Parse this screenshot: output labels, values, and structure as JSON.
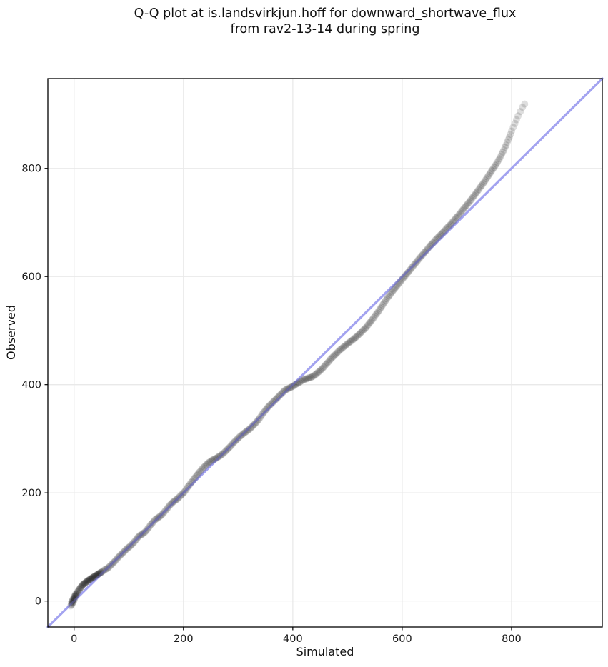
{
  "title": {
    "line1": "Q-Q plot at is.landsvirkjun.hoff for downward_shortwave_flux",
    "line2": "from rav2-13-14 during spring"
  },
  "chart_data": {
    "type": "scatter",
    "title": "Q-Q plot at is.landsvirkjun.hoff for downward_shortwave_flux from rav2-13-14 during spring",
    "xlabel": "Simulated",
    "ylabel": "Observed",
    "xlim": [
      -48,
      966
    ],
    "ylim": [
      -48,
      966
    ],
    "xticks": [
      0,
      200,
      400,
      600,
      800
    ],
    "yticks": [
      0,
      200,
      400,
      600,
      800
    ],
    "grid": true,
    "grid_color": "#e9e9e9",
    "spine_color": "#000000",
    "tick_label_color": "#1a1a1a",
    "reference_line": {
      "kind": "y=x",
      "x0": -48,
      "x1": 966,
      "color": "#a3a3f0",
      "width": 3.2,
      "overlay_opacity": 0.35
    },
    "point_style": {
      "color": "#000000",
      "opacity": 0.13,
      "radius": 5
    },
    "points": [
      [
        -6,
        -9
      ],
      [
        -5,
        -7
      ],
      [
        -5,
        -3
      ],
      [
        -4,
        -6
      ],
      [
        -4,
        -1
      ],
      [
        -3,
        -4
      ],
      [
        -3,
        1
      ],
      [
        -2,
        -2
      ],
      [
        -2,
        3
      ],
      [
        -1,
        0
      ],
      [
        -1,
        5
      ],
      [
        0,
        2
      ],
      [
        0,
        7
      ],
      [
        1,
        5
      ],
      [
        1,
        9
      ],
      [
        2,
        8
      ],
      [
        2,
        11
      ],
      [
        3,
        10
      ],
      [
        3,
        13
      ],
      [
        4,
        12
      ],
      [
        5,
        14
      ],
      [
        6,
        16
      ],
      [
        7,
        18
      ],
      [
        8,
        19
      ],
      [
        9,
        21
      ],
      [
        10,
        22
      ],
      [
        11,
        24
      ],
      [
        12,
        25
      ],
      [
        13,
        26
      ],
      [
        14,
        28
      ],
      [
        15,
        29
      ],
      [
        16,
        30
      ],
      [
        17,
        31
      ],
      [
        18,
        32
      ],
      [
        19,
        33
      ],
      [
        20,
        33
      ],
      [
        21,
        34
      ],
      [
        22,
        35
      ],
      [
        23,
        36
      ],
      [
        24,
        37
      ],
      [
        25,
        37
      ],
      [
        26,
        38
      ],
      [
        27,
        39
      ],
      [
        28,
        39
      ],
      [
        29,
        40
      ],
      [
        30,
        41
      ],
      [
        31,
        41
      ],
      [
        32,
        42
      ],
      [
        33,
        43
      ],
      [
        34,
        43
      ],
      [
        35,
        44
      ],
      [
        36,
        45
      ],
      [
        37,
        45
      ],
      [
        38,
        46
      ],
      [
        39,
        46
      ],
      [
        40,
        47
      ],
      [
        41,
        48
      ],
      [
        42,
        48
      ],
      [
        43,
        49
      ],
      [
        44,
        50
      ],
      [
        45,
        50
      ],
      [
        46,
        51
      ],
      [
        47,
        52
      ],
      [
        48,
        52
      ],
      [
        49,
        53
      ],
      [
        50,
        53
      ],
      [
        52,
        55
      ],
      [
        54,
        56
      ],
      [
        56,
        58
      ],
      [
        58,
        59
      ],
      [
        60,
        60
      ],
      [
        62,
        61
      ],
      [
        64,
        63
      ],
      [
        66,
        65
      ],
      [
        68,
        67
      ],
      [
        70,
        69
      ],
      [
        72,
        71
      ],
      [
        74,
        73
      ],
      [
        76,
        75
      ],
      [
        78,
        78
      ],
      [
        80,
        80
      ],
      [
        82,
        82
      ],
      [
        84,
        84
      ],
      [
        86,
        86
      ],
      [
        88,
        88
      ],
      [
        90,
        90
      ],
      [
        92,
        92
      ],
      [
        94,
        94
      ],
      [
        96,
        96
      ],
      [
        98,
        98
      ],
      [
        100,
        99
      ],
      [
        102,
        101
      ],
      [
        104,
        103
      ],
      [
        106,
        105
      ],
      [
        108,
        107
      ],
      [
        110,
        109
      ],
      [
        112,
        112
      ],
      [
        114,
        114
      ],
      [
        116,
        117
      ],
      [
        118,
        119
      ],
      [
        120,
        121
      ],
      [
        122,
        122
      ],
      [
        124,
        123
      ],
      [
        126,
        125
      ],
      [
        128,
        126
      ],
      [
        130,
        128
      ],
      [
        132,
        130
      ],
      [
        134,
        133
      ],
      [
        136,
        135
      ],
      [
        138,
        138
      ],
      [
        140,
        141
      ],
      [
        142,
        143
      ],
      [
        144,
        145
      ],
      [
        146,
        148
      ],
      [
        148,
        150
      ],
      [
        150,
        152
      ],
      [
        152,
        153
      ],
      [
        154,
        154
      ],
      [
        156,
        156
      ],
      [
        158,
        157
      ],
      [
        160,
        159
      ],
      [
        162,
        161
      ],
      [
        164,
        163
      ],
      [
        166,
        166
      ],
      [
        168,
        168
      ],
      [
        170,
        171
      ],
      [
        172,
        173
      ],
      [
        174,
        176
      ],
      [
        176,
        178
      ],
      [
        178,
        180
      ],
      [
        180,
        182
      ],
      [
        182,
        184
      ],
      [
        184,
        185
      ],
      [
        186,
        187
      ],
      [
        188,
        188
      ],
      [
        190,
        190
      ],
      [
        192,
        192
      ],
      [
        194,
        194
      ],
      [
        196,
        196
      ],
      [
        198,
        198
      ],
      [
        200,
        200
      ],
      [
        202,
        202
      ],
      [
        204,
        205
      ],
      [
        206,
        208
      ],
      [
        208,
        211
      ],
      [
        210,
        213
      ],
      [
        212,
        216
      ],
      [
        214,
        219
      ],
      [
        216,
        221
      ],
      [
        218,
        224
      ],
      [
        220,
        227
      ],
      [
        222,
        229
      ],
      [
        224,
        232
      ],
      [
        226,
        234
      ],
      [
        228,
        237
      ],
      [
        230,
        239
      ],
      [
        232,
        241
      ],
      [
        234,
        244
      ],
      [
        236,
        246
      ],
      [
        238,
        248
      ],
      [
        240,
        250
      ],
      [
        242,
        252
      ],
      [
        244,
        254
      ],
      [
        246,
        256
      ],
      [
        248,
        257
      ],
      [
        250,
        258
      ],
      [
        252,
        260
      ],
      [
        254,
        261
      ],
      [
        256,
        262
      ],
      [
        258,
        263
      ],
      [
        260,
        264
      ],
      [
        262,
        265
      ],
      [
        264,
        267
      ],
      [
        266,
        268
      ],
      [
        268,
        269
      ],
      [
        270,
        271
      ],
      [
        272,
        272
      ],
      [
        274,
        274
      ],
      [
        276,
        276
      ],
      [
        278,
        278
      ],
      [
        280,
        280
      ],
      [
        282,
        282
      ],
      [
        284,
        284
      ],
      [
        286,
        286
      ],
      [
        288,
        288
      ],
      [
        290,
        291
      ],
      [
        292,
        293
      ],
      [
        294,
        295
      ],
      [
        296,
        297
      ],
      [
        298,
        299
      ],
      [
        300,
        301
      ],
      [
        302,
        303
      ],
      [
        304,
        305
      ],
      [
        306,
        306
      ],
      [
        308,
        308
      ],
      [
        310,
        310
      ],
      [
        312,
        311
      ],
      [
        314,
        313
      ],
      [
        316,
        314
      ],
      [
        318,
        316
      ],
      [
        320,
        317
      ],
      [
        322,
        319
      ],
      [
        324,
        321
      ],
      [
        326,
        323
      ],
      [
        328,
        325
      ],
      [
        330,
        327
      ],
      [
        332,
        329
      ],
      [
        334,
        331
      ],
      [
        336,
        334
      ],
      [
        338,
        336
      ],
      [
        340,
        339
      ],
      [
        342,
        342
      ],
      [
        344,
        345
      ],
      [
        346,
        348
      ],
      [
        348,
        350
      ],
      [
        350,
        353
      ],
      [
        352,
        355
      ],
      [
        354,
        358
      ],
      [
        356,
        360
      ],
      [
        358,
        362
      ],
      [
        360,
        364
      ],
      [
        362,
        366
      ],
      [
        364,
        368
      ],
      [
        366,
        370
      ],
      [
        368,
        372
      ],
      [
        370,
        374
      ],
      [
        372,
        376
      ],
      [
        374,
        378
      ],
      [
        376,
        380
      ],
      [
        378,
        382
      ],
      [
        380,
        384
      ],
      [
        382,
        386
      ],
      [
        384,
        388
      ],
      [
        386,
        390
      ],
      [
        388,
        391
      ],
      [
        390,
        392
      ],
      [
        392,
        393
      ],
      [
        394,
        394
      ],
      [
        396,
        395
      ],
      [
        398,
        396
      ],
      [
        400,
        397
      ],
      [
        402,
        398
      ],
      [
        404,
        400
      ],
      [
        406,
        401
      ],
      [
        408,
        402
      ],
      [
        410,
        403
      ],
      [
        412,
        404
      ],
      [
        414,
        406
      ],
      [
        416,
        407
      ],
      [
        418,
        408
      ],
      [
        420,
        409
      ],
      [
        422,
        410
      ],
      [
        424,
        411
      ],
      [
        426,
        411
      ],
      [
        428,
        412
      ],
      [
        430,
        413
      ],
      [
        432,
        413
      ],
      [
        434,
        414
      ],
      [
        436,
        415
      ],
      [
        438,
        416
      ],
      [
        440,
        418
      ],
      [
        442,
        419
      ],
      [
        444,
        421
      ],
      [
        446,
        423
      ],
      [
        448,
        424
      ],
      [
        450,
        426
      ],
      [
        452,
        428
      ],
      [
        454,
        430
      ],
      [
        456,
        432
      ],
      [
        458,
        434
      ],
      [
        460,
        437
      ],
      [
        462,
        439
      ],
      [
        464,
        441
      ],
      [
        466,
        443
      ],
      [
        468,
        446
      ],
      [
        470,
        448
      ],
      [
        472,
        450
      ],
      [
        474,
        452
      ],
      [
        476,
        454
      ],
      [
        478,
        456
      ],
      [
        480,
        458
      ],
      [
        482,
        460
      ],
      [
        484,
        462
      ],
      [
        486,
        464
      ],
      [
        488,
        466
      ],
      [
        490,
        467
      ],
      [
        492,
        469
      ],
      [
        494,
        471
      ],
      [
        496,
        472
      ],
      [
        498,
        474
      ],
      [
        500,
        476
      ],
      [
        502,
        477
      ],
      [
        504,
        479
      ],
      [
        506,
        480
      ],
      [
        508,
        482
      ],
      [
        510,
        483
      ],
      [
        512,
        485
      ],
      [
        514,
        487
      ],
      [
        516,
        488
      ],
      [
        518,
        490
      ],
      [
        520,
        492
      ],
      [
        522,
        494
      ],
      [
        524,
        496
      ],
      [
        526,
        498
      ],
      [
        528,
        500
      ],
      [
        530,
        502
      ],
      [
        532,
        504
      ],
      [
        534,
        506
      ],
      [
        536,
        509
      ],
      [
        538,
        511
      ],
      [
        540,
        514
      ],
      [
        542,
        516
      ],
      [
        544,
        519
      ],
      [
        546,
        521
      ],
      [
        548,
        524
      ],
      [
        550,
        527
      ],
      [
        552,
        530
      ],
      [
        554,
        532
      ],
      [
        556,
        535
      ],
      [
        558,
        538
      ],
      [
        560,
        541
      ],
      [
        562,
        544
      ],
      [
        564,
        547
      ],
      [
        566,
        550
      ],
      [
        568,
        553
      ],
      [
        570,
        556
      ],
      [
        572,
        559
      ],
      [
        574,
        562
      ],
      [
        576,
        564
      ],
      [
        578,
        567
      ],
      [
        580,
        570
      ],
      [
        582,
        572
      ],
      [
        584,
        575
      ],
      [
        586,
        577
      ],
      [
        588,
        580
      ],
      [
        590,
        582
      ],
      [
        592,
        585
      ],
      [
        594,
        587
      ],
      [
        596,
        590
      ],
      [
        598,
        592
      ],
      [
        600,
        595
      ],
      [
        602,
        597
      ],
      [
        604,
        600
      ],
      [
        606,
        602
      ],
      [
        608,
        605
      ],
      [
        610,
        607
      ],
      [
        612,
        609
      ],
      [
        614,
        612
      ],
      [
        616,
        614
      ],
      [
        618,
        617
      ],
      [
        620,
        619
      ],
      [
        622,
        622
      ],
      [
        624,
        624
      ],
      [
        626,
        627
      ],
      [
        628,
        629
      ],
      [
        630,
        632
      ],
      [
        632,
        634
      ],
      [
        634,
        637
      ],
      [
        636,
        639
      ],
      [
        638,
        641
      ],
      [
        640,
        644
      ],
      [
        642,
        646
      ],
      [
        644,
        648
      ],
      [
        646,
        651
      ],
      [
        648,
        653
      ],
      [
        650,
        656
      ],
      [
        652,
        658
      ],
      [
        654,
        660
      ],
      [
        656,
        662
      ],
      [
        658,
        664
      ],
      [
        660,
        667
      ],
      [
        662,
        669
      ],
      [
        664,
        671
      ],
      [
        666,
        673
      ],
      [
        668,
        675
      ],
      [
        670,
        677
      ],
      [
        672,
        679
      ],
      [
        674,
        681
      ],
      [
        676,
        683
      ],
      [
        678,
        685
      ],
      [
        680,
        688
      ],
      [
        682,
        690
      ],
      [
        684,
        692
      ],
      [
        686,
        694
      ],
      [
        688,
        696
      ],
      [
        690,
        698
      ],
      [
        692,
        701
      ],
      [
        694,
        703
      ],
      [
        696,
        705
      ],
      [
        698,
        708
      ],
      [
        700,
        710
      ],
      [
        702,
        712
      ],
      [
        704,
        715
      ],
      [
        706,
        717
      ],
      [
        708,
        720
      ],
      [
        710,
        722
      ],
      [
        712,
        725
      ],
      [
        714,
        727
      ],
      [
        716,
        730
      ],
      [
        718,
        732
      ],
      [
        720,
        735
      ],
      [
        722,
        737
      ],
      [
        724,
        740
      ],
      [
        726,
        742
      ],
      [
        728,
        745
      ],
      [
        730,
        748
      ],
      [
        732,
        750
      ],
      [
        734,
        753
      ],
      [
        736,
        756
      ],
      [
        738,
        758
      ],
      [
        740,
        761
      ],
      [
        742,
        764
      ],
      [
        744,
        767
      ],
      [
        746,
        769
      ],
      [
        748,
        772
      ],
      [
        750,
        775
      ],
      [
        752,
        778
      ],
      [
        754,
        781
      ],
      [
        756,
        784
      ],
      [
        758,
        787
      ],
      [
        760,
        790
      ],
      [
        762,
        793
      ],
      [
        764,
        796
      ],
      [
        766,
        799
      ],
      [
        768,
        802
      ],
      [
        770,
        805
      ],
      [
        772,
        808
      ],
      [
        774,
        811
      ],
      [
        776,
        815
      ],
      [
        778,
        818
      ],
      [
        780,
        822
      ],
      [
        782,
        826
      ],
      [
        784,
        830
      ],
      [
        786,
        834
      ],
      [
        788,
        839
      ],
      [
        790,
        843
      ],
      [
        792,
        848
      ],
      [
        794,
        853
      ],
      [
        796,
        858
      ],
      [
        798,
        863
      ],
      [
        800,
        869
      ],
      [
        803,
        876
      ],
      [
        806,
        883
      ],
      [
        809,
        890
      ],
      [
        812,
        897
      ],
      [
        816,
        905
      ],
      [
        820,
        913
      ],
      [
        824,
        919
      ]
    ]
  }
}
